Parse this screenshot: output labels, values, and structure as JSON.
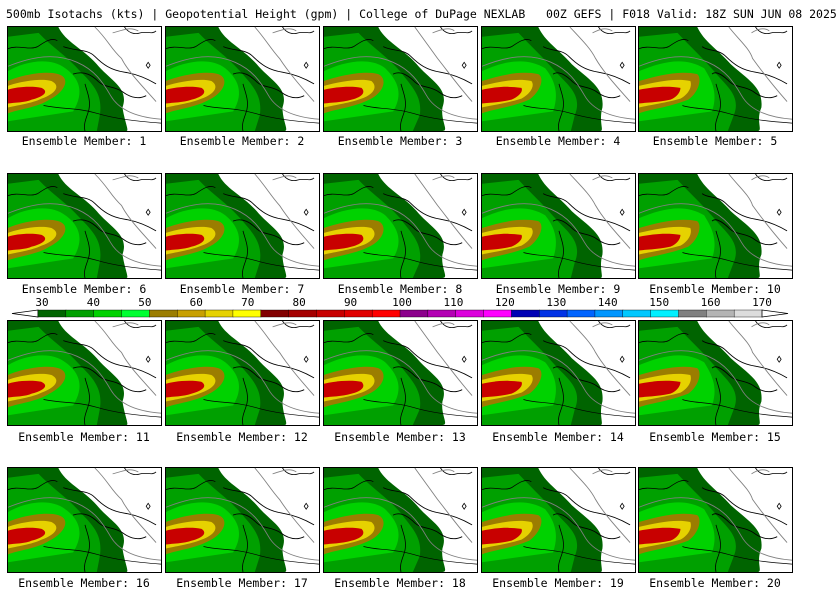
{
  "header": {
    "title": "500mb Isotachs (kts) | Geopotential Height (gpm) | College of DuPage NEXLAB   00Z GEFS | F018 Valid: 18Z SUN JUN 08 2025"
  },
  "panels": [
    {
      "label": "Ensemble Member: 1"
    },
    {
      "label": "Ensemble Member: 2"
    },
    {
      "label": "Ensemble Member: 3"
    },
    {
      "label": "Ensemble Member: 4"
    },
    {
      "label": "Ensemble Member: 5"
    },
    {
      "label": "Ensemble Member: 6"
    },
    {
      "label": "Ensemble Member: 7"
    },
    {
      "label": "Ensemble Member: 8"
    },
    {
      "label": "Ensemble Member: 9"
    },
    {
      "label": "Ensemble Member: 10"
    },
    {
      "label": "Ensemble Member: 11"
    },
    {
      "label": "Ensemble Member: 12"
    },
    {
      "label": "Ensemble Member: 13"
    },
    {
      "label": "Ensemble Member: 14"
    },
    {
      "label": "Ensemble Member: 15"
    },
    {
      "label": "Ensemble Member: 16"
    },
    {
      "label": "Ensemble Member: 17"
    },
    {
      "label": "Ensemble Member: 18"
    },
    {
      "label": "Ensemble Member: 19"
    },
    {
      "label": "Ensemble Member: 20"
    }
  ],
  "colorbar": {
    "labels": [
      "30",
      "40",
      "50",
      "60",
      "70",
      "80",
      "90",
      "100",
      "110",
      "120",
      "130",
      "140",
      "150",
      "160",
      "170"
    ],
    "colors": [
      "#006400",
      "#00a000",
      "#00d200",
      "#00ff32",
      "#9b7d00",
      "#c8a000",
      "#e6d200",
      "#ffff00",
      "#820000",
      "#a50000",
      "#c80000",
      "#e10000",
      "#ff0000",
      "#8c008c",
      "#b400b4",
      "#dc00dc",
      "#ff00ff",
      "#0000b4",
      "#0032e6",
      "#0064ff",
      "#0096ff",
      "#00c8ff",
      "#00f0ff",
      "#808080",
      "#b4b4b4",
      "#dcdcdc"
    ]
  },
  "map_colors": {
    "green_dark": "#006400",
    "green_mid": "#00a000",
    "green_light": "#00d200",
    "olive": "#9b7d00",
    "gold": "#c8a000",
    "yellow": "#e6d200",
    "red_dark": "#a50000",
    "red": "#c80000",
    "contour": "#808080"
  }
}
